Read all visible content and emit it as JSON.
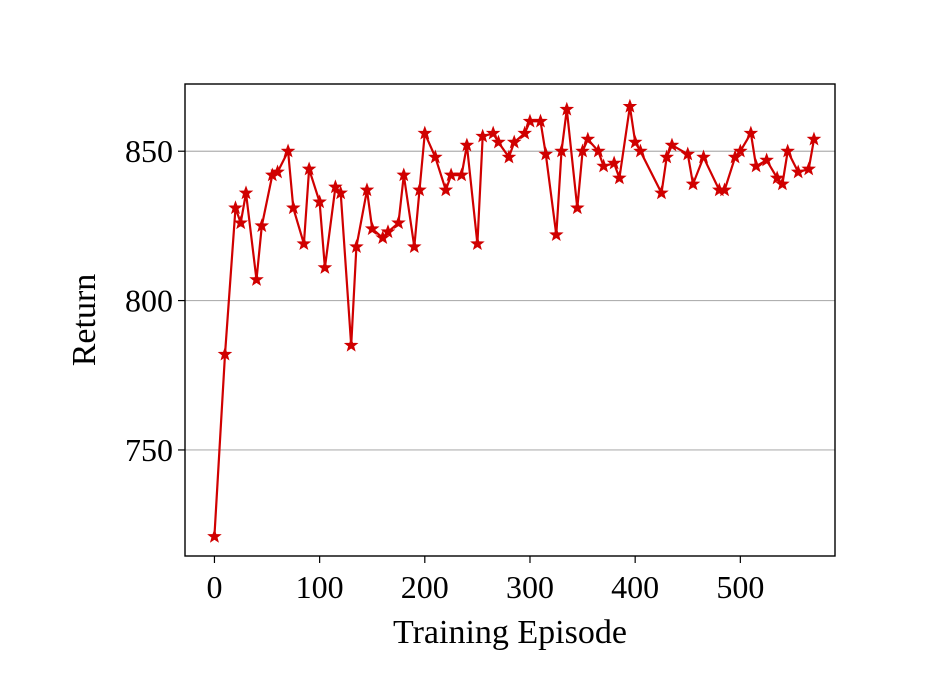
{
  "chart_data": {
    "type": "line",
    "title": "",
    "xlabel": "Training Episode",
    "ylabel": "Return",
    "xlim": [
      -28,
      590
    ],
    "ylim": [
      714.5,
      872.5
    ],
    "xticks": [
      0,
      100,
      200,
      300,
      400,
      500
    ],
    "yticks": [
      750,
      800,
      850
    ],
    "grid": "horizontal",
    "marker": "star",
    "series": [
      {
        "color": "#d00000",
        "x": [
          0,
          10,
          20,
          25,
          30,
          40,
          45,
          55,
          60,
          70,
          75,
          85,
          90,
          100,
          105,
          115,
          120,
          130,
          135,
          145,
          150,
          160,
          165,
          175,
          180,
          190,
          195,
          200,
          210,
          220,
          225,
          235,
          240,
          250,
          255,
          265,
          270,
          280,
          285,
          295,
          300,
          310,
          315,
          325,
          330,
          335,
          345,
          350,
          355,
          365,
          370,
          380,
          385,
          395,
          400,
          405,
          425,
          430,
          435,
          450,
          455,
          465,
          480,
          485,
          495,
          500,
          510,
          515,
          525,
          535,
          540,
          545,
          555,
          565,
          570
        ],
        "y": [
          721,
          782,
          831,
          826,
          836,
          807,
          825,
          842,
          843,
          850,
          831,
          819,
          844,
          833,
          811,
          838,
          836,
          785,
          818,
          837,
          824,
          821,
          823,
          826,
          842,
          818,
          837,
          856,
          848,
          837,
          842,
          842,
          852,
          819,
          855,
          856,
          853,
          848,
          853,
          856,
          860,
          860,
          849,
          822,
          850,
          864,
          831,
          850,
          854,
          850,
          845,
          846,
          841,
          865,
          853,
          850,
          836,
          848,
          852,
          849,
          839,
          848,
          837,
          837,
          848,
          850,
          856,
          845,
          847,
          841,
          839,
          850,
          843,
          844,
          854
        ]
      }
    ]
  }
}
